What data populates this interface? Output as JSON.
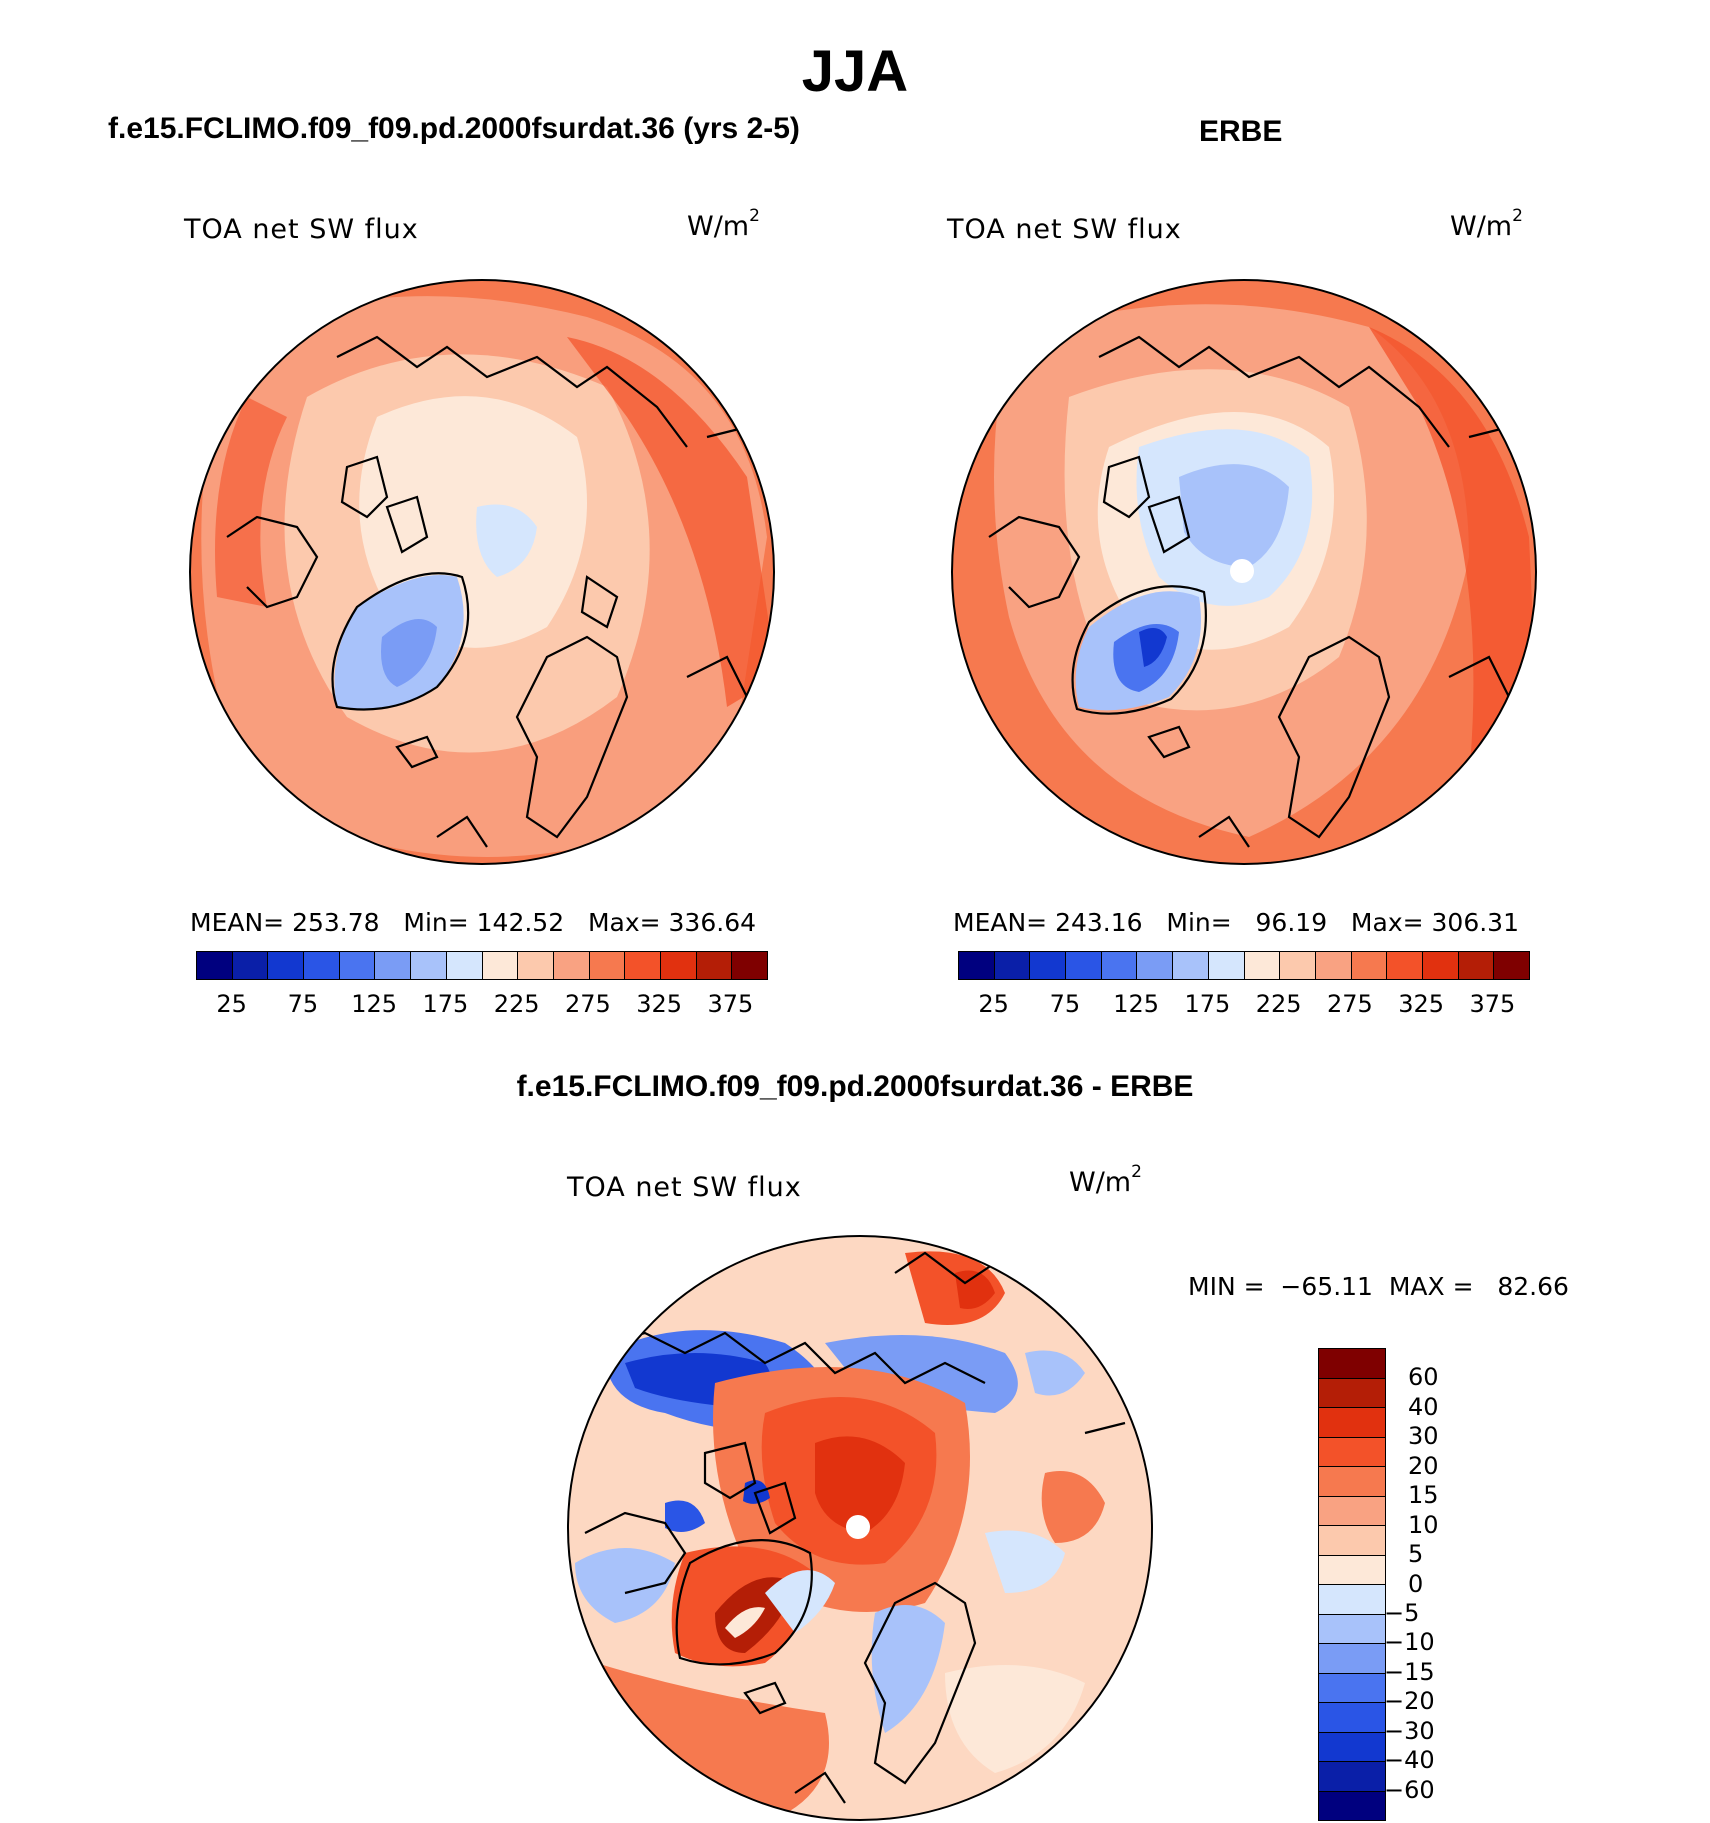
{
  "title": "JJA",
  "panels": [
    {
      "id": "model",
      "title": "f.e15.FCLIMO.f09_f09.pd.2000fsurdat.36 (yrs 2-5)",
      "variable": "TOA net SW flux",
      "units_base": "W/m",
      "units_exp": "2",
      "stats": "MEAN= 253.78   Min= 142.52   Max= 336.64",
      "colorbar": {
        "colors": [
          "#00007f",
          "#0a1fa8",
          "#1238d0",
          "#2a55e6",
          "#4a74f0",
          "#7a9cf5",
          "#a8c2fa",
          "#d5e6fd",
          "#fde8d8",
          "#fcc9ad",
          "#f9a282",
          "#f6794f",
          "#f35229",
          "#e1310f",
          "#b41e06",
          "#7f0000"
        ],
        "labels": [
          "25",
          "75",
          "125",
          "175",
          "225",
          "275",
          "325",
          "375"
        ]
      }
    },
    {
      "id": "obs",
      "title": "ERBE",
      "variable": "TOA net SW flux",
      "units_base": "W/m",
      "units_exp": "2",
      "stats": "MEAN= 243.16   Min=   96.19   Max= 306.31",
      "colorbar": {
        "colors": [
          "#00007f",
          "#0a1fa8",
          "#1238d0",
          "#2a55e6",
          "#4a74f0",
          "#7a9cf5",
          "#a8c2fa",
          "#d5e6fd",
          "#fde8d8",
          "#fcc9ad",
          "#f9a282",
          "#f6794f",
          "#f35229",
          "#e1310f",
          "#b41e06",
          "#7f0000"
        ],
        "labels": [
          "25",
          "75",
          "125",
          "175",
          "225",
          "275",
          "325",
          "375"
        ]
      }
    },
    {
      "id": "diff",
      "title": "f.e15.FCLIMO.f09_f09.pd.2000fsurdat.36 - ERBE",
      "variable": "TOA net SW flux",
      "units_base": "W/m",
      "units_exp": "2",
      "stats": "MIN =  −65.11  MAX =   82.66",
      "colorbar": {
        "colors": [
          "#7f0000",
          "#b41e06",
          "#e1310f",
          "#f35229",
          "#f6794f",
          "#f9a282",
          "#fcc9ad",
          "#fde8d8",
          "#d5e6fd",
          "#a8c2fa",
          "#7a9cf5",
          "#4a74f0",
          "#2a55e6",
          "#1238d0",
          "#0a1fa8",
          "#00007f"
        ],
        "labels": [
          "60",
          "40",
          "30",
          "20",
          "15",
          "10",
          "5",
          "0",
          "−5",
          "−10",
          "−15",
          "−20",
          "−30",
          "−40",
          "−60"
        ]
      }
    }
  ]
}
